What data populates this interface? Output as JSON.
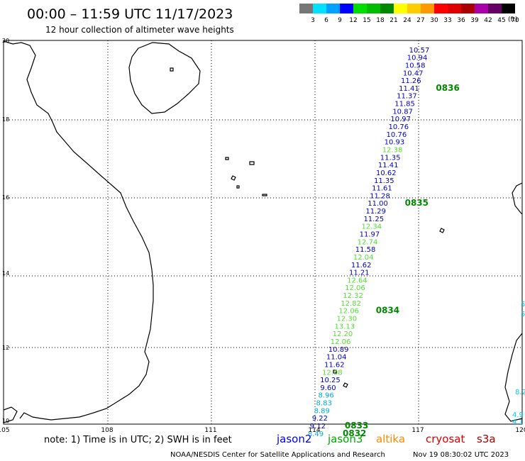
{
  "header": {
    "title": "00:00 – 11:59 UTC 11/17/2023",
    "subtitle": "12 hour collection of altimeter wave heights"
  },
  "legend": {
    "unit": "(ft)",
    "bins": [
      {
        "label": "3",
        "color": "#777777"
      },
      {
        "label": "6",
        "color": "#00e0ff"
      },
      {
        "label": "9",
        "color": "#00a0ff"
      },
      {
        "label": "12",
        "color": "#0000ff"
      },
      {
        "label": "15",
        "color": "#00dd00"
      },
      {
        "label": "18",
        "color": "#00bb00"
      },
      {
        "label": "21",
        "color": "#008800"
      },
      {
        "label": "24",
        "color": "#ffff00"
      },
      {
        "label": "27",
        "color": "#ffcc00"
      },
      {
        "label": "30",
        "color": "#ff9900"
      },
      {
        "label": "33",
        "color": "#ff0000"
      },
      {
        "label": "36",
        "color": "#dd0000"
      },
      {
        "label": "39",
        "color": "#aa0000"
      },
      {
        "label": "42",
        "color": "#aa00aa"
      },
      {
        "label": "45",
        "color": "#660066"
      },
      {
        "label": "70",
        "color": "#000000"
      }
    ]
  },
  "axes": {
    "lon_labels": [
      "105",
      "108",
      "111",
      "114",
      "117",
      "120"
    ],
    "lat_labels": [
      "10",
      "12",
      "14",
      "16",
      "18",
      "20"
    ]
  },
  "track": {
    "satellite": "jason2/jason3",
    "readings": [
      {
        "v": "10.57",
        "lat": 19.8,
        "color": "#0000cc"
      },
      {
        "v": "10.94",
        "lat": 19.6,
        "color": "#0000cc"
      },
      {
        "v": "10.58",
        "lat": 19.4,
        "color": "#0000cc"
      },
      {
        "v": "10.47",
        "lat": 19.2,
        "color": "#0000cc"
      },
      {
        "v": "11.26",
        "lat": 19.0,
        "color": "#0000cc"
      },
      {
        "v": "11.41",
        "lat": 18.8,
        "color": "#0000cc"
      },
      {
        "v": "11.37",
        "lat": 18.6,
        "color": "#0000cc"
      },
      {
        "v": "11.85",
        "lat": 18.4,
        "color": "#0000cc"
      },
      {
        "v": "10.87",
        "lat": 18.2,
        "color": "#0000cc"
      },
      {
        "v": "10.97",
        "lat": 18.0,
        "color": "#0000cc"
      },
      {
        "v": "10.76",
        "lat": 17.8,
        "color": "#0000cc"
      },
      {
        "v": "10.76",
        "lat": 17.6,
        "color": "#0000cc"
      },
      {
        "v": "10.93",
        "lat": 17.4,
        "color": "#0000cc"
      },
      {
        "v": "12.38",
        "lat": 17.2,
        "color": "#55dd33"
      },
      {
        "v": "11.35",
        "lat": 17.0,
        "color": "#0000cc"
      },
      {
        "v": "11.41",
        "lat": 16.8,
        "color": "#0000cc"
      },
      {
        "v": "10.62",
        "lat": 16.6,
        "color": "#0000cc"
      },
      {
        "v": "11.35",
        "lat": 16.4,
        "color": "#0000cc"
      },
      {
        "v": "11.61",
        "lat": 16.2,
        "color": "#0000cc"
      },
      {
        "v": "11.28",
        "lat": 16.0,
        "color": "#0000cc"
      },
      {
        "v": "11.00",
        "lat": 15.8,
        "color": "#0000cc"
      },
      {
        "v": "11.29",
        "lat": 15.6,
        "color": "#0000cc"
      },
      {
        "v": "11.25",
        "lat": 15.4,
        "color": "#0000cc"
      },
      {
        "v": "12.34",
        "lat": 15.2,
        "color": "#55dd33"
      },
      {
        "v": "11.97",
        "lat": 15.0,
        "color": "#0000cc"
      },
      {
        "v": "12.74",
        "lat": 14.8,
        "color": "#55dd33"
      },
      {
        "v": "11.58",
        "lat": 14.6,
        "color": "#0000cc"
      },
      {
        "v": "12.04",
        "lat": 14.4,
        "color": "#55dd33"
      },
      {
        "v": "11.62",
        "lat": 14.2,
        "color": "#0000cc"
      },
      {
        "v": "11.21",
        "lat": 14.0,
        "color": "#0000cc"
      },
      {
        "v": "12.64",
        "lat": 13.8,
        "color": "#55dd33"
      },
      {
        "v": "12.06",
        "lat": 13.6,
        "color": "#55dd33"
      },
      {
        "v": "12.32",
        "lat": 13.4,
        "color": "#55dd33"
      },
      {
        "v": "12.82",
        "lat": 13.2,
        "color": "#55dd33"
      },
      {
        "v": "12.06",
        "lat": 13.0,
        "color": "#55dd33"
      },
      {
        "v": "12.30",
        "lat": 12.8,
        "color": "#55dd33"
      },
      {
        "v": "13.13",
        "lat": 12.6,
        "color": "#55dd33"
      },
      {
        "v": "12.20",
        "lat": 12.4,
        "color": "#55dd33"
      },
      {
        "v": "12.06",
        "lat": 12.2,
        "color": "#55dd33"
      },
      {
        "v": "10.89",
        "lat": 12.0,
        "color": "#0000cc"
      },
      {
        "v": "11.04",
        "lat": 11.8,
        "color": "#0000cc"
      },
      {
        "v": "11.62",
        "lat": 11.6,
        "color": "#0000cc"
      },
      {
        "v": "12.08",
        "lat": 11.4,
        "color": "#55dd33"
      },
      {
        "v": "10.25",
        "lat": 11.2,
        "color": "#0000cc"
      },
      {
        "v": "9.60",
        "lat": 11.0,
        "color": "#0000cc"
      },
      {
        "v": "8.96",
        "lat": 10.8,
        "color": "#00aadd"
      },
      {
        "v": "8.83",
        "lat": 10.6,
        "color": "#00aadd"
      },
      {
        "v": "8.89",
        "lat": 10.4,
        "color": "#00aadd"
      },
      {
        "v": "9.22",
        "lat": 10.2,
        "color": "#0000cc"
      },
      {
        "v": "9.12",
        "lat": 10.0,
        "color": "#0000cc"
      },
      {
        "v": "8.49",
        "lat": 9.8,
        "color": "#00aadd"
      }
    ],
    "time_labels": [
      {
        "t": "0836",
        "lat": 18.8
      },
      {
        "t": "0835",
        "lat": 15.8
      },
      {
        "t": "0834",
        "lat": 13.0
      },
      {
        "t": "0833",
        "lat": 10.0
      },
      {
        "t": "0832",
        "lat": 9.8
      }
    ]
  },
  "footer": {
    "note": "note: 1) Time is in UTC; 2) SWH is in feet",
    "sats": [
      {
        "name": "jason2",
        "color": "#0000ff"
      },
      {
        "name": "jason3",
        "color": "#00aa00"
      },
      {
        "name": "altika",
        "color": "#ff8800"
      },
      {
        "name": "cryosat",
        "color": "#dd0000"
      },
      {
        "name": "s3a",
        "color": "#aa0000"
      }
    ],
    "credit": "NOAA/NESDIS Center for Satellite Applications and Research",
    "timestamp": "Nov 19 08:30:02 UTC 2023"
  }
}
